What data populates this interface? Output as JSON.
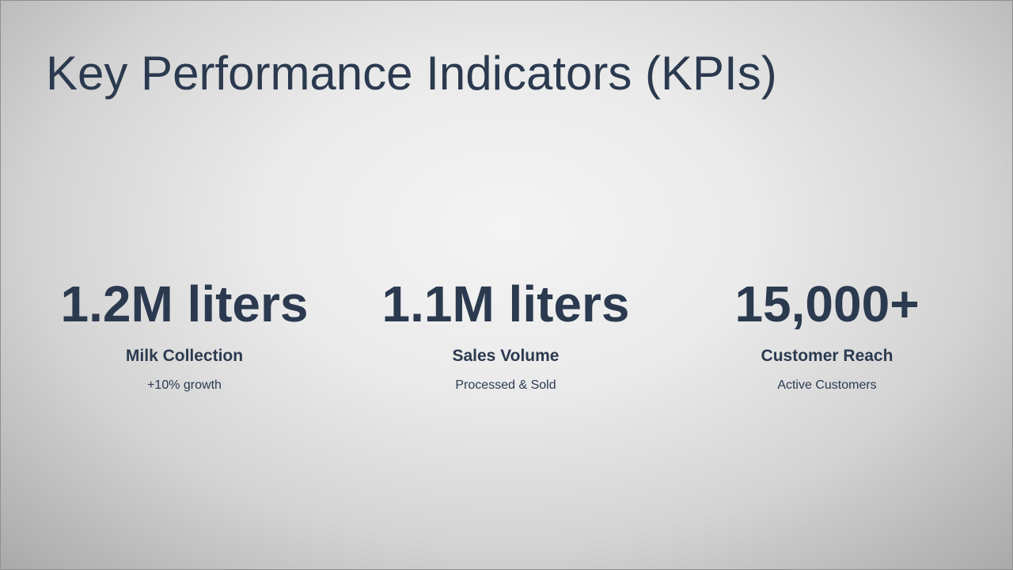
{
  "slide": {
    "title": "Key Performance Indicators (KPIs)",
    "kpis": [
      {
        "value": "1.2M liters",
        "label": "Milk Collection",
        "sublabel": "+10% growth"
      },
      {
        "value": "1.1M liters",
        "label": "Sales Volume",
        "sublabel": "Processed & Sold"
      },
      {
        "value": "15,000+",
        "label": "Customer Reach",
        "sublabel": "Active Customers"
      }
    ]
  },
  "colors": {
    "text": "#2b3a4f",
    "background_center": "#f4f4f4",
    "background_edge": "#a9a9a9"
  }
}
